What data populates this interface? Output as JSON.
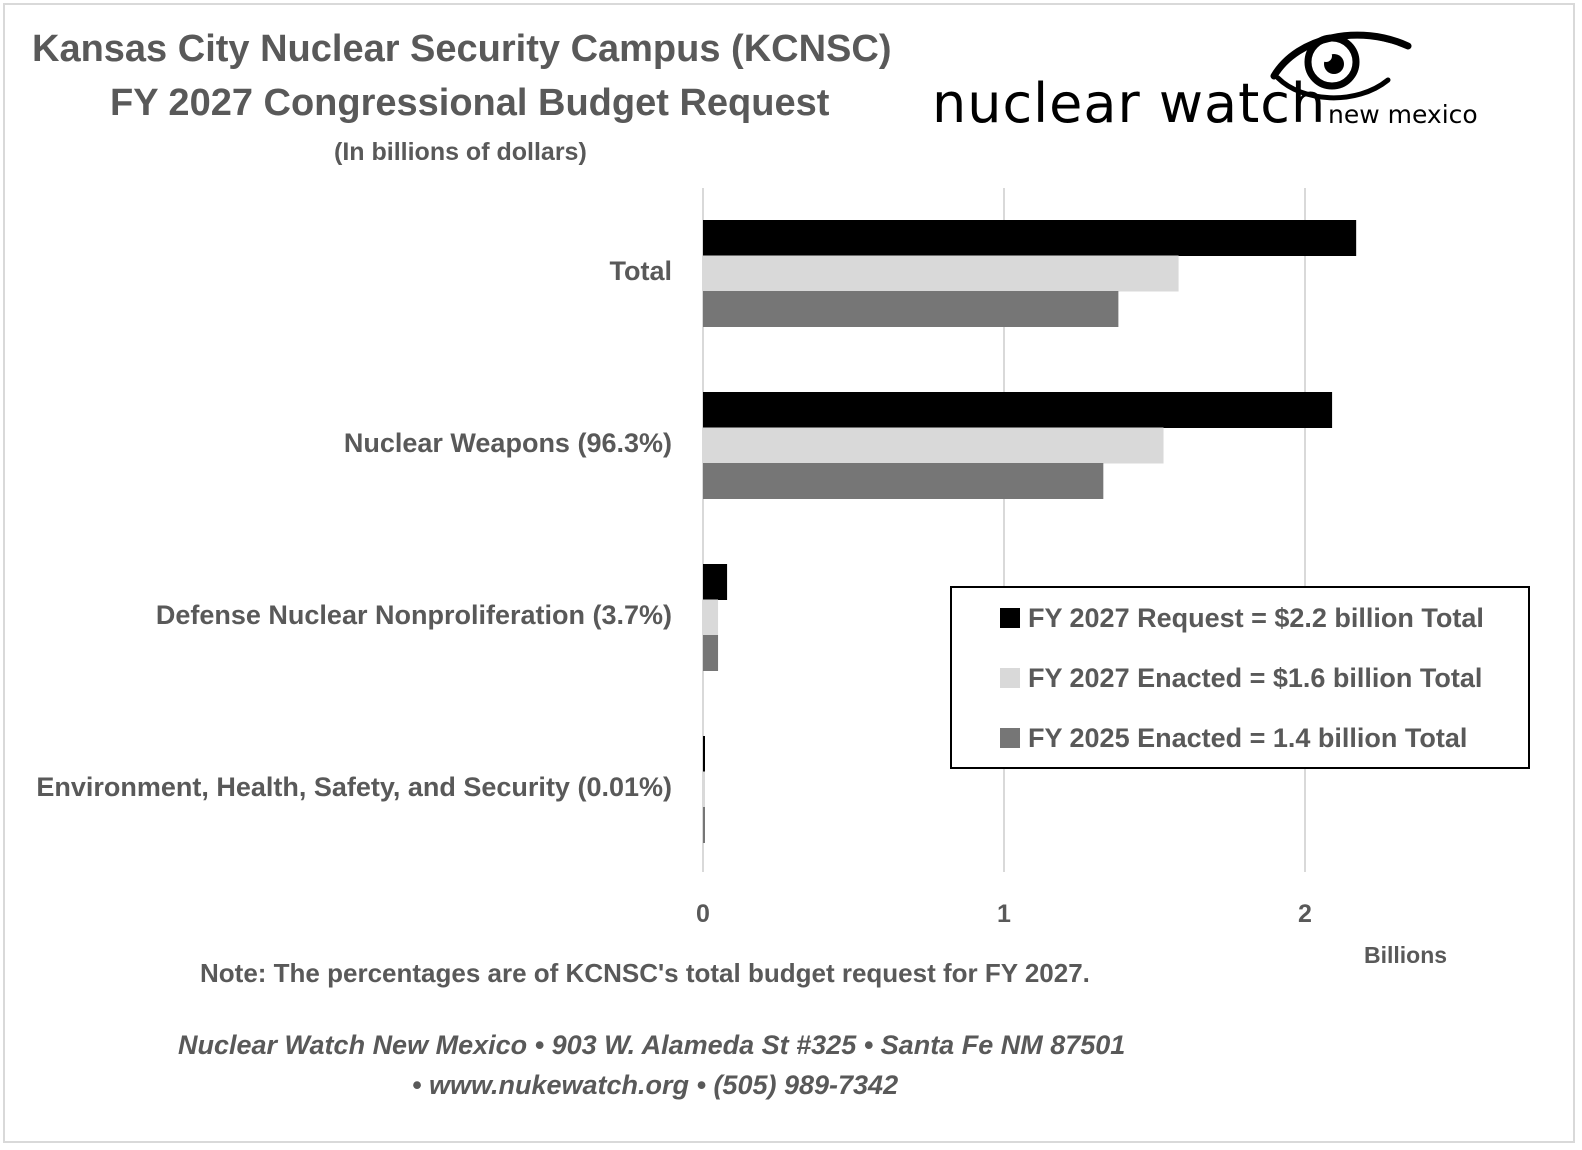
{
  "header": {
    "title_line1": "Kansas City Nuclear Security Campus (KCNSC)",
    "title_line2": "FY 2027 Congressional Budget Request",
    "subtitle": "(In billions of dollars)"
  },
  "logo": {
    "name": "nuclear watch",
    "sub": "new mexico",
    "icon": "eye-icon"
  },
  "chart_data": {
    "type": "bar",
    "orientation": "horizontal",
    "categories": [
      "Total",
      "Nuclear Weapons (96.3%)",
      "Defense Nuclear Nonproliferation (3.7%)",
      "Environment, Health, Safety, and Security (0.01%)"
    ],
    "series": [
      {
        "name": "FY 2027 Request = $2.2 billion Total",
        "color": "#000000",
        "values": [
          2.17,
          2.09,
          0.08,
          0.0002
        ]
      },
      {
        "name": "FY 2027 Enacted = $1.6 billion Total",
        "color": "#d9d9d9",
        "values": [
          1.58,
          1.53,
          0.05,
          0.0002
        ]
      },
      {
        "name": "FY 2025 Enacted = 1.4 billion Total",
        "color": "#767676",
        "values": [
          1.38,
          1.33,
          0.05,
          0.0002
        ]
      }
    ],
    "x_ticks": [
      "0",
      "1",
      "2"
    ],
    "xlim": [
      0,
      2.75
    ],
    "xlabel": "Billions",
    "grid": true,
    "legend_position": "bottom-right"
  },
  "note": "Note: The percentages are of KCNSC's total budget request for FY 2027.",
  "footer": {
    "line1": "Nuclear Watch New Mexico • 903 W. Alameda St #325 • Santa Fe NM 87501",
    "line2": "• www.nukewatch.org • (505) 989-7342"
  }
}
